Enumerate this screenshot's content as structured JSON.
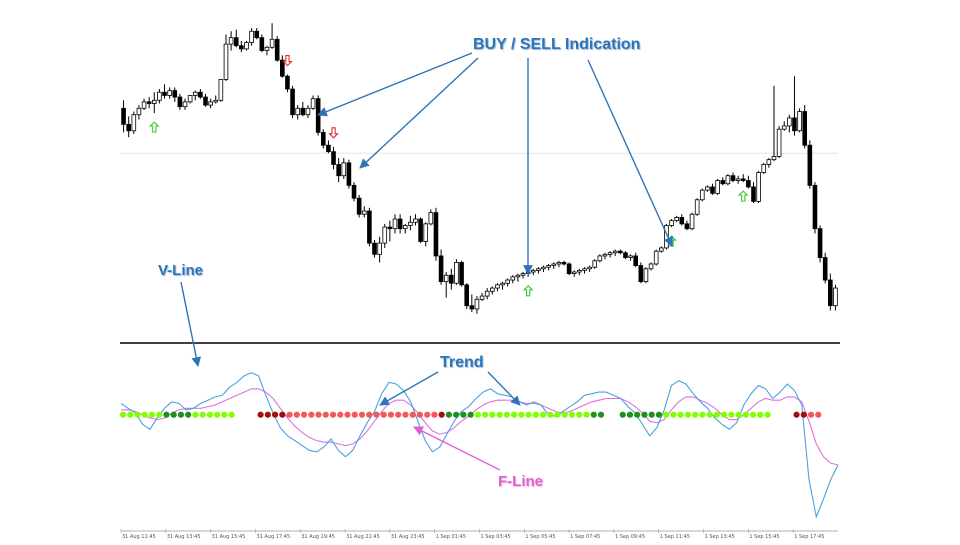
{
  "annotations": {
    "buy_sell": "BUY / SELL Indication",
    "v_line": "V-Line",
    "trend": "Trend",
    "f_line": "F-Line"
  },
  "colors": {
    "buy_arrow": "#33cc33",
    "sell_arrow": "#e03030",
    "v_line": "#4aa3e0",
    "f_line": "#e070e0",
    "trend_bright_green": "#7fff00",
    "trend_dark_green": "#1f8f1f",
    "trend_light_red": "#f05a5a",
    "trend_dark_red": "#a01010",
    "annotation_blue": "#2e75b6",
    "annotation_pink": "#e060d0"
  },
  "chart_data": [
    {
      "type": "candlestick",
      "ohlc": [
        [
          6,
          6.5,
          4.5,
          5
        ],
        [
          5,
          5.5,
          4.2,
          4.6
        ],
        [
          4.6,
          5.8,
          4.4,
          5.6
        ],
        [
          5.6,
          6.2,
          5.3,
          6.0
        ],
        [
          6.0,
          6.6,
          5.9,
          6.4
        ],
        [
          6.4,
          6.7,
          6.0,
          6.3
        ],
        [
          6.3,
          7.0,
          5.7,
          6.5
        ],
        [
          6.5,
          7.2,
          6.3,
          7.0
        ],
        [
          7.0,
          7.5,
          6.6,
          6.8
        ],
        [
          6.8,
          7.3,
          6.6,
          7.1
        ],
        [
          7.1,
          7.3,
          6.4,
          6.7
        ],
        [
          6.7,
          6.9,
          5.9,
          6.1
        ],
        [
          6.1,
          6.6,
          5.9,
          6.4
        ],
        [
          6.4,
          6.8,
          6.3,
          6.8
        ],
        [
          6.8,
          7.1,
          6.5,
          7.0
        ],
        [
          7.0,
          7.2,
          6.6,
          6.7
        ],
        [
          6.7,
          6.9,
          6.1,
          6.2
        ],
        [
          6.2,
          6.6,
          6.0,
          6.4
        ],
        [
          6.4,
          6.8,
          6.3,
          6.5
        ],
        [
          6.5,
          7.8,
          6.4,
          7.8
        ],
        [
          7.8,
          10.6,
          7.7,
          10.0
        ],
        [
          10.0,
          10.8,
          9.6,
          10.4
        ],
        [
          10.4,
          10.9,
          9.8,
          9.9
        ],
        [
          9.9,
          10.2,
          9.5,
          9.7
        ],
        [
          9.7,
          10.2,
          9.6,
          10.1
        ],
        [
          10.1,
          11.0,
          9.9,
          10.8
        ],
        [
          10.8,
          11.0,
          10.3,
          10.4
        ],
        [
          10.4,
          10.6,
          9.5,
          9.6
        ],
        [
          9.6,
          9.9,
          9.3,
          9.8
        ],
        [
          9.8,
          11.3,
          9.7,
          10.3
        ],
        [
          10.3,
          10.5,
          8.9,
          9.0
        ],
        [
          9.0,
          9.3,
          7.9,
          8.0
        ],
        [
          8.0,
          8.1,
          7.0,
          7.2
        ],
        [
          7.2,
          7.4,
          5.4,
          5.6
        ],
        [
          5.6,
          6.2,
          5.3,
          6.0
        ],
        [
          6.0,
          6.4,
          5.5,
          5.6
        ],
        [
          5.6,
          6.2,
          5.4,
          6.0
        ],
        [
          6.0,
          6.8,
          5.9,
          6.6
        ],
        [
          6.6,
          6.8,
          4.3,
          4.5
        ],
        [
          4.5,
          4.7,
          3.5,
          3.7
        ],
        [
          3.7,
          4.0,
          3.2,
          3.3
        ],
        [
          3.3,
          3.6,
          2.2,
          2.5
        ],
        [
          2.5,
          2.9,
          1.4,
          1.8
        ],
        [
          1.8,
          2.9,
          1.6,
          2.6
        ],
        [
          2.6,
          2.8,
          1.0,
          1.2
        ],
        [
          1.2,
          1.4,
          0.2,
          0.4
        ],
        [
          0.4,
          0.6,
          -0.8,
          -0.6
        ],
        [
          -0.6,
          -0.1,
          -0.8,
          -0.4
        ],
        [
          -0.4,
          -0.2,
          -2.6,
          -2.4
        ],
        [
          -2.4,
          -2.2,
          -3.3,
          -3.1
        ],
        [
          -3.1,
          -2.0,
          -3.6,
          -2.4
        ],
        [
          -2.4,
          -1.2,
          -2.7,
          -1.4
        ],
        [
          -1.4,
          -1.0,
          -2.3,
          -1.5
        ],
        [
          -1.5,
          -0.6,
          -1.8,
          -0.9
        ],
        [
          -0.9,
          -0.6,
          -1.8,
          -1.5
        ],
        [
          -1.5,
          -1.2,
          -1.8,
          -1.3
        ],
        [
          -1.3,
          -0.7,
          -1.6,
          -1.1
        ],
        [
          -1.1,
          -0.6,
          -1.3,
          -0.9
        ],
        [
          -0.9,
          -0.8,
          -2.4,
          -2.3
        ],
        [
          -2.3,
          -1.1,
          -2.6,
          -1.2
        ],
        [
          -1.2,
          -0.3,
          -1.3,
          -0.5
        ],
        [
          -0.5,
          -0.2,
          -3.5,
          -3.2
        ],
        [
          -3.2,
          -2.8,
          -5.0,
          -4.8
        ],
        [
          -4.8,
          -4.2,
          -5.8,
          -4.4
        ],
        [
          -4.4,
          -4.0,
          -5.3,
          -4.9
        ],
        [
          -4.9,
          -3.4,
          -5.0,
          -3.6
        ],
        [
          -3.6,
          -3.5,
          -5.1,
          -5.0
        ],
        [
          -5.0,
          -4.9,
          -6.5,
          -6.3
        ],
        [
          -6.3,
          -5.6,
          -6.7,
          -6.5
        ],
        [
          -6.5,
          -5.7,
          -6.8,
          -5.9
        ],
        [
          -5.9,
          -5.5,
          -6.0,
          -5.7
        ],
        [
          -5.7,
          -5.2,
          -5.9,
          -5.4
        ],
        [
          -5.4,
          -5.1,
          -5.6,
          -5.2
        ],
        [
          -5.2,
          -4.9,
          -5.4,
          -5.0
        ],
        [
          -5.0,
          -4.8,
          -5.3,
          -4.9
        ],
        [
          -4.9,
          -4.6,
          -5.1,
          -4.7
        ],
        [
          -4.7,
          -4.4,
          -4.9,
          -4.5
        ],
        [
          -4.5,
          -4.3,
          -4.8,
          -4.4
        ],
        [
          -4.4,
          -4.2,
          -4.6,
          -4.3
        ],
        [
          -4.3,
          -4.1,
          -4.5,
          -4.2
        ],
        [
          -4.2,
          -4.0,
          -4.4,
          -4.1
        ],
        [
          -4.1,
          -3.9,
          -4.3,
          -4.0
        ],
        [
          -4.0,
          -3.8,
          -4.2,
          -3.9
        ],
        [
          -3.9,
          -3.7,
          -4.1,
          -3.8
        ],
        [
          -3.8,
          -3.6,
          -4.0,
          -3.7
        ],
        [
          -3.7,
          -3.5,
          -3.9,
          -3.6
        ],
        [
          -3.6,
          -3.5,
          -3.8,
          -3.7
        ],
        [
          -3.7,
          -3.6,
          -4.4,
          -4.3
        ],
        [
          -4.3,
          -4.1,
          -4.5,
          -4.2
        ],
        [
          -4.2,
          -4.0,
          -4.4,
          -4.1
        ],
        [
          -4.1,
          -3.9,
          -4.3,
          -4.0
        ],
        [
          -4.0,
          -3.8,
          -4.2,
          -3.9
        ],
        [
          -3.9,
          -3.4,
          -4.0,
          -3.5
        ],
        [
          -3.5,
          -3.1,
          -3.6,
          -3.2
        ],
        [
          -3.2,
          -3.0,
          -3.4,
          -3.1
        ],
        [
          -3.1,
          -2.9,
          -3.3,
          -3.0
        ],
        [
          -3.0,
          -2.8,
          -3.2,
          -2.9
        ],
        [
          -2.9,
          -2.8,
          -3.1,
          -3.0
        ],
        [
          -3.0,
          -2.9,
          -3.4,
          -3.3
        ],
        [
          -3.3,
          -3.1,
          -3.5,
          -3.2
        ],
        [
          -3.2,
          -3.0,
          -3.9,
          -3.8
        ],
        [
          -3.8,
          -3.6,
          -4.9,
          -4.8
        ],
        [
          -4.8,
          -3.9,
          -4.9,
          -4.0
        ],
        [
          -4.0,
          -3.6,
          -4.1,
          -3.7
        ],
        [
          -3.7,
          -2.8,
          -3.8,
          -2.9
        ],
        [
          -2.9,
          -2.6,
          -3.0,
          -2.7
        ],
        [
          -2.7,
          -1.2,
          -2.8,
          -1.3
        ],
        [
          -1.3,
          -0.9,
          -1.4,
          -1.0
        ],
        [
          -1.0,
          -0.7,
          -1.1,
          -0.8
        ],
        [
          -0.8,
          -0.6,
          -1.3,
          -1.2
        ],
        [
          -1.2,
          -1.0,
          -1.6,
          -1.5
        ],
        [
          -1.5,
          -0.5,
          -1.6,
          -0.6
        ],
        [
          -0.6,
          0.4,
          -0.7,
          0.3
        ],
        [
          0.3,
          1.0,
          0.2,
          0.9
        ],
        [
          0.9,
          1.2,
          0.8,
          1.1
        ],
        [
          1.1,
          1.3,
          0.6,
          0.7
        ],
        [
          0.7,
          1.6,
          0.6,
          1.5
        ],
        [
          1.5,
          1.7,
          1.2,
          1.3
        ],
        [
          1.3,
          1.9,
          1.2,
          1.8
        ],
        [
          1.8,
          2.0,
          1.4,
          1.5
        ],
        [
          1.5,
          1.8,
          1.3,
          1.6
        ],
        [
          1.6,
          1.9,
          1.4,
          1.5
        ],
        [
          1.5,
          1.8,
          1.0,
          1.1
        ],
        [
          1.1,
          1.4,
          0.1,
          0.2
        ],
        [
          0.2,
          2.1,
          0.1,
          2.0
        ],
        [
          2.0,
          2.6,
          1.9,
          2.5
        ],
        [
          2.5,
          2.9,
          2.3,
          2.8
        ],
        [
          2.8,
          7.4,
          2.7,
          3.0
        ],
        [
          3.0,
          4.9,
          2.9,
          4.7
        ],
        [
          4.7,
          5.2,
          4.6,
          4.9
        ],
        [
          4.9,
          5.6,
          4.5,
          5.4
        ],
        [
          5.4,
          8.0,
          4.3,
          4.6
        ],
        [
          4.6,
          6.0,
          4.5,
          5.8
        ],
        [
          5.8,
          6.2,
          3.5,
          3.7
        ],
        [
          3.7,
          4.0,
          1.0,
          1.2
        ],
        [
          1.2,
          1.4,
          -1.8,
          -1.5
        ],
        [
          -1.5,
          -1.3,
          -3.6,
          -3.3
        ],
        [
          -3.3,
          -3.0,
          -4.9,
          -4.7
        ],
        [
          -4.7,
          -4.3,
          -6.6,
          -6.3
        ],
        [
          -6.3,
          -5.0,
          -6.6,
          -5.2
        ]
      ],
      "x_tick_labels": [
        "31 Aug 11:45",
        "31 Aug 13:45",
        "31 Aug 15:45",
        "31 Aug 17:45",
        "31 Aug 19:45",
        "31 Aug 21:45",
        "31 Aug 23:45",
        "1 Sep 01:45",
        "1 Sep 03:45",
        "1 Sep 05:45",
        "1 Sep 07:45",
        "1 Sep 09:45",
        "1 Sep 11:45",
        "1 Sep 13:45",
        "1 Sep 15:45",
        "1 Sep 17:45"
      ],
      "signals": [
        {
          "type": "buy",
          "bar": 6
        },
        {
          "type": "sell",
          "bar": 32
        },
        {
          "type": "sell",
          "bar": 41
        },
        {
          "type": "buy",
          "bar": 79
        },
        {
          "type": "buy",
          "bar": 107
        },
        {
          "type": "buy",
          "bar": 121
        }
      ],
      "ylim": [
        -8,
        12
      ]
    },
    {
      "type": "line",
      "series": [
        {
          "key": "v_line",
          "values": [
            0.7,
            0.4,
            0.1,
            -0.6,
            -0.9,
            -0.2,
            0.4,
            0.8,
            0.7,
            0.3,
            0.4,
            0.7,
            0.9,
            1.1,
            1.2,
            1.7,
            2.0,
            2.4,
            2.6,
            2.4,
            1.2,
            0.1,
            -0.8,
            -1.3,
            -1.6,
            -1.9,
            -2.2,
            -2.3,
            -2.0,
            -1.5,
            -2.2,
            -2.6,
            -2.2,
            -1.3,
            -0.5,
            0.2,
            1.3,
            2.0,
            1.9,
            1.5,
            0.8,
            -0.4,
            -1.6,
            -2.3,
            -2.0,
            -1.2,
            -0.4,
            0.2,
            0.5,
            1.0,
            1.4,
            1.6,
            1.3,
            1.2,
            1.1,
            0.8,
            0.6,
            0.8,
            0.6,
            0.0,
            -0.1,
            0.2,
            0.5,
            0.8,
            1.2,
            1.3,
            1.4,
            1.4,
            1.2,
            1.0,
            0.5,
            0.1,
            -0.6,
            -1.3,
            -0.8,
            0.3,
            1.8,
            2.1,
            1.9,
            1.3,
            0.8,
            0.4,
            -0.2,
            -0.6,
            -0.9,
            -0.5,
            0.6,
            1.3,
            1.8,
            1.6,
            1.0,
            1.4,
            1.9,
            1.5,
            0.6,
            -4.0,
            -6.3,
            -5.2,
            -4.0,
            -3.1
          ]
        },
        {
          "key": "f_line",
          "values": [
            0.3,
            0.3,
            0.2,
            0.0,
            -0.2,
            -0.3,
            -0.2,
            0.1,
            0.3,
            0.4,
            0.4,
            0.4,
            0.5,
            0.6,
            0.8,
            1.0,
            1.2,
            1.4,
            1.6,
            1.6,
            1.4,
            1.0,
            0.4,
            -0.2,
            -0.7,
            -1.1,
            -1.4,
            -1.6,
            -1.7,
            -1.7,
            -1.8,
            -1.9,
            -1.8,
            -1.5,
            -1.0,
            -0.4,
            0.2,
            0.7,
            0.9,
            0.9,
            0.6,
            0.1,
            -0.5,
            -1.0,
            -1.2,
            -1.1,
            -0.8,
            -0.4,
            -0.1,
            0.3,
            0.6,
            0.8,
            0.9,
            0.9,
            0.9,
            0.8,
            0.7,
            0.7,
            0.6,
            0.4,
            0.2,
            0.1,
            0.2,
            0.4,
            0.6,
            0.8,
            0.9,
            1.0,
            1.0,
            1.0,
            0.8,
            0.5,
            0.1,
            -0.4,
            -0.5,
            -0.3,
            0.3,
            0.8,
            1.1,
            1.1,
            0.9,
            0.7,
            0.4,
            0.0,
            -0.3,
            -0.3,
            0.0,
            0.4,
            0.8,
            1.0,
            0.9,
            0.9,
            1.1,
            1.1,
            0.8,
            -0.4,
            -1.8,
            -2.6,
            -3.0,
            -3.1
          ]
        }
      ],
      "trend_dots": [
        {
          "from": 0,
          "to": 5,
          "state": "bright_green"
        },
        {
          "from": 6,
          "to": 9,
          "state": "dark_green"
        },
        {
          "from": 10,
          "to": 15,
          "state": "bright_green"
        },
        {
          "from": 19,
          "to": 22,
          "state": "dark_red"
        },
        {
          "from": 23,
          "to": 43,
          "state": "light_red"
        },
        {
          "from": 44,
          "to": 44,
          "state": "dark_red"
        },
        {
          "from": 45,
          "to": 48,
          "state": "dark_green"
        },
        {
          "from": 49,
          "to": 64,
          "state": "bright_green"
        },
        {
          "from": 65,
          "to": 66,
          "state": "dark_green"
        },
        {
          "from": 69,
          "to": 74,
          "state": "dark_green"
        },
        {
          "from": 75,
          "to": 89,
          "state": "bright_green"
        },
        {
          "from": 93,
          "to": 94,
          "state": "dark_red"
        },
        {
          "from": 95,
          "to": 96,
          "state": "light_red"
        }
      ],
      "ylim": [
        -7,
        4
      ]
    }
  ]
}
